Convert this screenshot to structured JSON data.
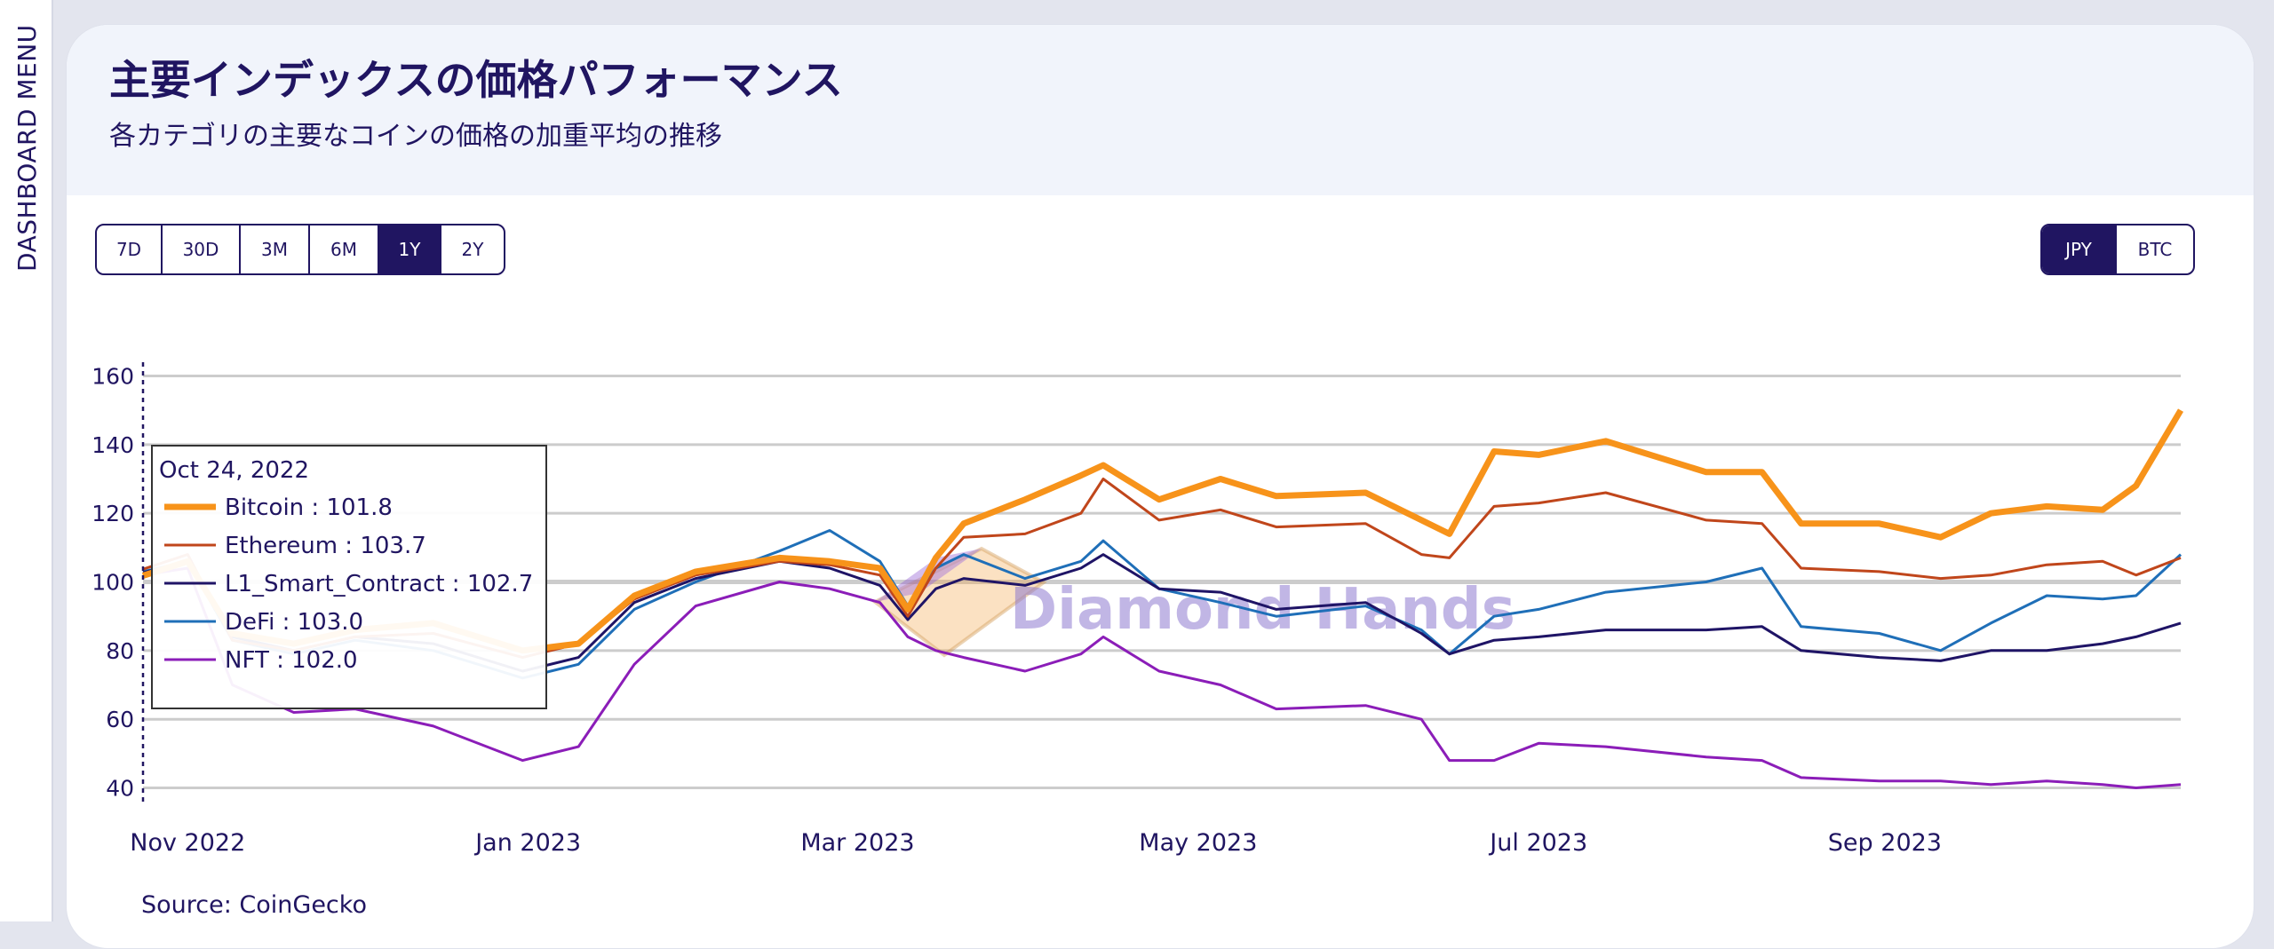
{
  "sidebar": {
    "label": "DASHBOARD MENU"
  },
  "header": {
    "title": "主要インデックスの価格パフォーマンス",
    "subtitle": "各カテゴリの主要なコインの価格の加重平均の推移"
  },
  "range_buttons": [
    {
      "label": "7D",
      "active": false
    },
    {
      "label": "30D",
      "active": false
    },
    {
      "label": "3M",
      "active": false
    },
    {
      "label": "6M",
      "active": false
    },
    {
      "label": "1Y",
      "active": true
    },
    {
      "label": "2Y",
      "active": false
    }
  ],
  "currency_buttons": [
    {
      "label": "JPY",
      "active": true
    },
    {
      "label": "BTC",
      "active": false
    }
  ],
  "watermark": {
    "text": "Diamond Hands"
  },
  "source": "Source: CoinGecko",
  "tooltip": {
    "date": "Oct 24, 2022",
    "rows": [
      {
        "name": "Bitcoin",
        "value": "101.8"
      },
      {
        "name": "Ethereum",
        "value": "103.7"
      },
      {
        "name": "L1_Smart_Contract",
        "value": "102.7"
      },
      {
        "name": "DeFi",
        "value": "103.0"
      },
      {
        "name": "NFT",
        "value": "102.0"
      }
    ]
  },
  "colors": {
    "brand": "#201561",
    "Bitcoin": "#f7931a",
    "Ethereum": "#c0461b",
    "L1_Smart_Contract": "#1f1466",
    "DeFi": "#1f6fb8",
    "NFT": "#8b1db8",
    "grid": "#cccccc"
  },
  "chart_data": {
    "type": "line",
    "xlabel": "",
    "ylabel": "",
    "x_range": [
      "2022-10-24",
      "2023-10-24"
    ],
    "x_ticks": [
      {
        "label": "Nov 2022",
        "date": "2022-11-01"
      },
      {
        "label": "Jan 2023",
        "date": "2023-01-01"
      },
      {
        "label": "Mar 2023",
        "date": "2023-03-01"
      },
      {
        "label": "May 2023",
        "date": "2023-05-01"
      },
      {
        "label": "Jul 2023",
        "date": "2023-07-01"
      },
      {
        "label": "Sep 2023",
        "date": "2023-09-01"
      }
    ],
    "ylim": [
      36,
      164
    ],
    "y_ticks": [
      40,
      60,
      80,
      100,
      120,
      140,
      160
    ],
    "grid": true,
    "series": [
      {
        "name": "Bitcoin",
        "points": [
          [
            "2022-10-24",
            101.8
          ],
          [
            "2022-11-01",
            106
          ],
          [
            "2022-11-09",
            85
          ],
          [
            "2022-11-20",
            82
          ],
          [
            "2022-12-01",
            86
          ],
          [
            "2022-12-15",
            88
          ],
          [
            "2022-12-31",
            80
          ],
          [
            "2023-01-10",
            82
          ],
          [
            "2023-01-20",
            96
          ],
          [
            "2023-01-31",
            103
          ],
          [
            "2023-02-15",
            107
          ],
          [
            "2023-02-24",
            106
          ],
          [
            "2023-03-05",
            104
          ],
          [
            "2023-03-10",
            92
          ],
          [
            "2023-03-15",
            107
          ],
          [
            "2023-03-20",
            117
          ],
          [
            "2023-03-31",
            124
          ],
          [
            "2023-04-10",
            131
          ],
          [
            "2023-04-14",
            134
          ],
          [
            "2023-04-24",
            124
          ],
          [
            "2023-05-05",
            130
          ],
          [
            "2023-05-15",
            125
          ],
          [
            "2023-05-31",
            126
          ],
          [
            "2023-06-10",
            118
          ],
          [
            "2023-06-15",
            114
          ],
          [
            "2023-06-23",
            138
          ],
          [
            "2023-07-01",
            137
          ],
          [
            "2023-07-13",
            141
          ],
          [
            "2023-07-31",
            132
          ],
          [
            "2023-08-10",
            132
          ],
          [
            "2023-08-17",
            117
          ],
          [
            "2023-08-31",
            117
          ],
          [
            "2023-09-11",
            113
          ],
          [
            "2023-09-20",
            120
          ],
          [
            "2023-09-30",
            122
          ],
          [
            "2023-10-10",
            121
          ],
          [
            "2023-10-16",
            128
          ],
          [
            "2023-10-24",
            150
          ]
        ]
      },
      {
        "name": "Ethereum",
        "points": [
          [
            "2022-10-24",
            103.7
          ],
          [
            "2022-11-01",
            108
          ],
          [
            "2022-11-09",
            83
          ],
          [
            "2022-11-20",
            80
          ],
          [
            "2022-12-01",
            84
          ],
          [
            "2022-12-15",
            85
          ],
          [
            "2022-12-31",
            78
          ],
          [
            "2023-01-10",
            82
          ],
          [
            "2023-01-20",
            95
          ],
          [
            "2023-01-31",
            102
          ],
          [
            "2023-02-15",
            106
          ],
          [
            "2023-02-24",
            105
          ],
          [
            "2023-03-05",
            102
          ],
          [
            "2023-03-10",
            90
          ],
          [
            "2023-03-15",
            104
          ],
          [
            "2023-03-20",
            113
          ],
          [
            "2023-03-31",
            114
          ],
          [
            "2023-04-10",
            120
          ],
          [
            "2023-04-14",
            130
          ],
          [
            "2023-04-24",
            118
          ],
          [
            "2023-05-05",
            121
          ],
          [
            "2023-05-15",
            116
          ],
          [
            "2023-05-31",
            117
          ],
          [
            "2023-06-10",
            108
          ],
          [
            "2023-06-15",
            107
          ],
          [
            "2023-06-23",
            122
          ],
          [
            "2023-07-01",
            123
          ],
          [
            "2023-07-13",
            126
          ],
          [
            "2023-07-31",
            118
          ],
          [
            "2023-08-10",
            117
          ],
          [
            "2023-08-17",
            104
          ],
          [
            "2023-08-31",
            103
          ],
          [
            "2023-09-11",
            101
          ],
          [
            "2023-09-20",
            102
          ],
          [
            "2023-09-30",
            105
          ],
          [
            "2023-10-10",
            106
          ],
          [
            "2023-10-16",
            102
          ],
          [
            "2023-10-24",
            107
          ]
        ]
      },
      {
        "name": "L1_Smart_Contract",
        "points": [
          [
            "2022-10-24",
            102.7
          ],
          [
            "2022-11-01",
            106
          ],
          [
            "2022-11-09",
            84
          ],
          [
            "2022-11-20",
            80
          ],
          [
            "2022-12-01",
            84
          ],
          [
            "2022-12-15",
            82
          ],
          [
            "2022-12-31",
            74
          ],
          [
            "2023-01-10",
            78
          ],
          [
            "2023-01-20",
            94
          ],
          [
            "2023-01-31",
            101
          ],
          [
            "2023-02-15",
            106
          ],
          [
            "2023-02-24",
            104
          ],
          [
            "2023-03-05",
            99
          ],
          [
            "2023-03-10",
            89
          ],
          [
            "2023-03-15",
            98
          ],
          [
            "2023-03-20",
            101
          ],
          [
            "2023-03-31",
            99
          ],
          [
            "2023-04-10",
            104
          ],
          [
            "2023-04-14",
            108
          ],
          [
            "2023-04-24",
            98
          ],
          [
            "2023-05-05",
            97
          ],
          [
            "2023-05-15",
            92
          ],
          [
            "2023-05-31",
            94
          ],
          [
            "2023-06-10",
            85
          ],
          [
            "2023-06-15",
            79
          ],
          [
            "2023-06-23",
            83
          ],
          [
            "2023-07-01",
            84
          ],
          [
            "2023-07-13",
            86
          ],
          [
            "2023-07-31",
            86
          ],
          [
            "2023-08-10",
            87
          ],
          [
            "2023-08-17",
            80
          ],
          [
            "2023-08-31",
            78
          ],
          [
            "2023-09-11",
            77
          ],
          [
            "2023-09-20",
            80
          ],
          [
            "2023-09-30",
            80
          ],
          [
            "2023-10-10",
            82
          ],
          [
            "2023-10-16",
            84
          ],
          [
            "2023-10-24",
            88
          ]
        ]
      },
      {
        "name": "DeFi",
        "points": [
          [
            "2022-10-24",
            103.0
          ],
          [
            "2022-11-01",
            106
          ],
          [
            "2022-11-09",
            83
          ],
          [
            "2022-11-20",
            79
          ],
          [
            "2022-12-01",
            83
          ],
          [
            "2022-12-15",
            80
          ],
          [
            "2022-12-31",
            72
          ],
          [
            "2023-01-10",
            76
          ],
          [
            "2023-01-20",
            92
          ],
          [
            "2023-01-31",
            100
          ],
          [
            "2023-02-15",
            109
          ],
          [
            "2023-02-24",
            115
          ],
          [
            "2023-03-05",
            106
          ],
          [
            "2023-03-10",
            93
          ],
          [
            "2023-03-15",
            104
          ],
          [
            "2023-03-20",
            108
          ],
          [
            "2023-03-31",
            101
          ],
          [
            "2023-04-10",
            106
          ],
          [
            "2023-04-14",
            112
          ],
          [
            "2023-04-24",
            98
          ],
          [
            "2023-05-05",
            94
          ],
          [
            "2023-05-15",
            90
          ],
          [
            "2023-05-31",
            93
          ],
          [
            "2023-06-10",
            86
          ],
          [
            "2023-06-15",
            79
          ],
          [
            "2023-06-23",
            90
          ],
          [
            "2023-07-01",
            92
          ],
          [
            "2023-07-13",
            97
          ],
          [
            "2023-07-31",
            100
          ],
          [
            "2023-08-10",
            104
          ],
          [
            "2023-08-17",
            87
          ],
          [
            "2023-08-31",
            85
          ],
          [
            "2023-09-11",
            80
          ],
          [
            "2023-09-20",
            88
          ],
          [
            "2023-09-30",
            96
          ],
          [
            "2023-10-10",
            95
          ],
          [
            "2023-10-16",
            96
          ],
          [
            "2023-10-24",
            108
          ]
        ]
      },
      {
        "name": "NFT",
        "points": [
          [
            "2022-10-24",
            102.0
          ],
          [
            "2022-11-01",
            104
          ],
          [
            "2022-11-09",
            70
          ],
          [
            "2022-11-20",
            62
          ],
          [
            "2022-12-01",
            63
          ],
          [
            "2022-12-15",
            58
          ],
          [
            "2022-12-31",
            48
          ],
          [
            "2023-01-10",
            52
          ],
          [
            "2023-01-20",
            76
          ],
          [
            "2023-01-31",
            93
          ],
          [
            "2023-02-15",
            100
          ],
          [
            "2023-02-24",
            98
          ],
          [
            "2023-03-05",
            94
          ],
          [
            "2023-03-10",
            84
          ],
          [
            "2023-03-15",
            80
          ],
          [
            "2023-03-20",
            78
          ],
          [
            "2023-03-31",
            74
          ],
          [
            "2023-04-10",
            79
          ],
          [
            "2023-04-14",
            84
          ],
          [
            "2023-04-24",
            74
          ],
          [
            "2023-05-05",
            70
          ],
          [
            "2023-05-15",
            63
          ],
          [
            "2023-05-31",
            64
          ],
          [
            "2023-06-10",
            60
          ],
          [
            "2023-06-15",
            48
          ],
          [
            "2023-06-23",
            48
          ],
          [
            "2023-07-01",
            53
          ],
          [
            "2023-07-13",
            52
          ],
          [
            "2023-07-31",
            49
          ],
          [
            "2023-08-10",
            48
          ],
          [
            "2023-08-17",
            43
          ],
          [
            "2023-08-31",
            42
          ],
          [
            "2023-09-11",
            42
          ],
          [
            "2023-09-20",
            41
          ],
          [
            "2023-09-30",
            42
          ],
          [
            "2023-10-10",
            41
          ],
          [
            "2023-10-16",
            40
          ],
          [
            "2023-10-24",
            41
          ]
        ]
      }
    ]
  }
}
